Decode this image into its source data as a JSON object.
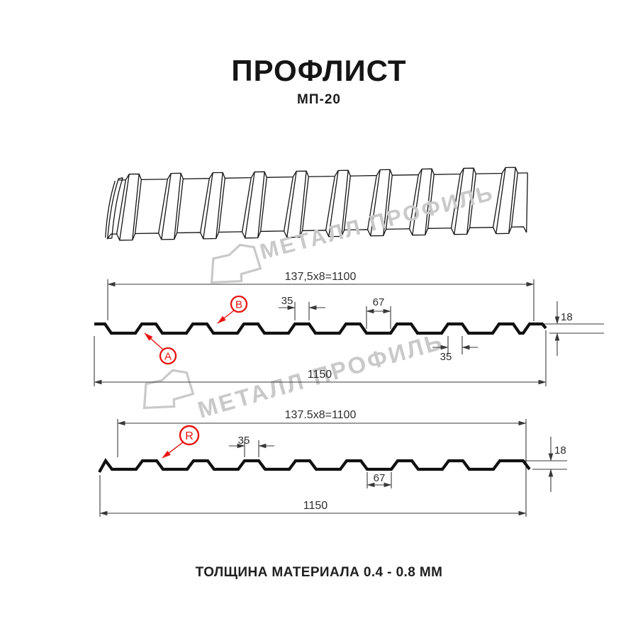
{
  "title": {
    "main": "ПРОФЛИСТ",
    "model": "МП-20"
  },
  "footer": {
    "text": "ТОЛЩИНА МАТЕРИАЛА 0.4 - 0.8 ММ"
  },
  "watermark": {
    "text": "МЕТАЛЛ ПРОФИЛЬ"
  },
  "colors": {
    "accent_red": "#e8140e",
    "drawing_line": "#141414",
    "dimension_line": "#383838",
    "watermark_gray": "#c9c9c9"
  },
  "diagram1": {
    "dim_working_width": "137,5x8=1100",
    "dim_total_width": "1150",
    "dim_rib_top": "35",
    "dim_rib_bottom": "35",
    "dim_valley": "67",
    "dim_height": "18",
    "label_a": "A",
    "label_b": "B"
  },
  "diagram2": {
    "dim_working_width": "137.5x8=1100",
    "dim_total_width": "1150",
    "dim_rib_top": "35",
    "dim_valley": "67",
    "dim_height": "18",
    "label_r": "R"
  }
}
